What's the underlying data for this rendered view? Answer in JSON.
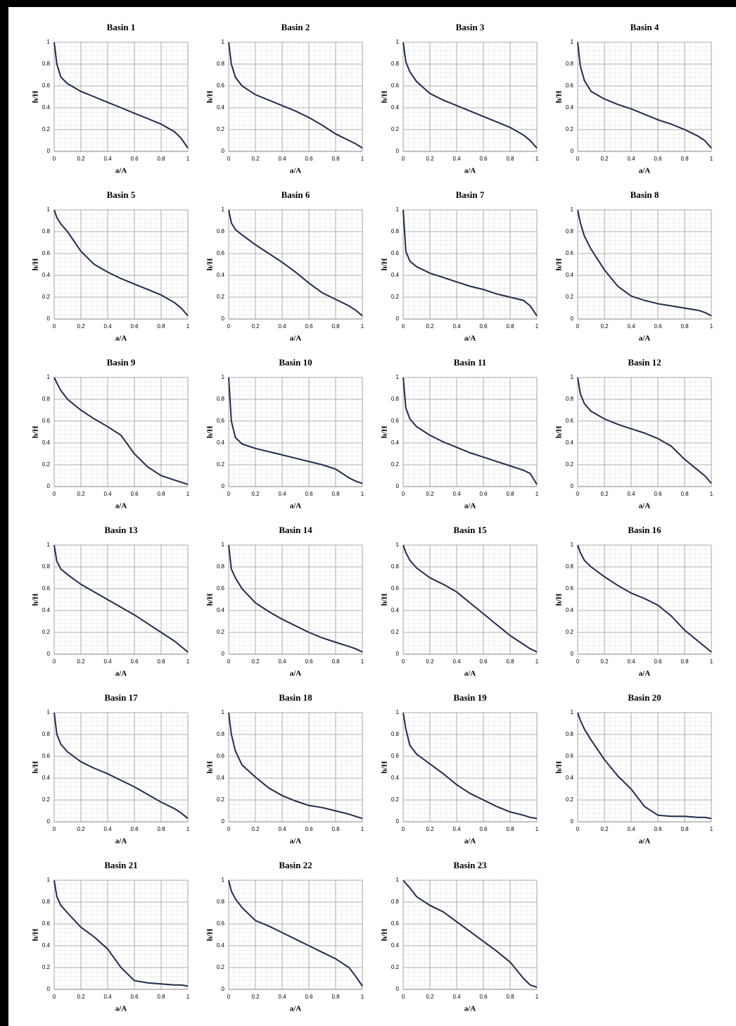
{
  "chart_data": [
    {
      "type": "line",
      "title": "Basin 1",
      "xlabel": "a/A",
      "ylabel": "h/H",
      "x": [
        0,
        0.02,
        0.05,
        0.1,
        0.2,
        0.3,
        0.4,
        0.5,
        0.6,
        0.7,
        0.8,
        0.9,
        0.95,
        1
      ],
      "values": [
        1,
        0.8,
        0.68,
        0.62,
        0.55,
        0.5,
        0.45,
        0.4,
        0.35,
        0.3,
        0.25,
        0.18,
        0.12,
        0.03
      ],
      "color": "#1f2d4d",
      "xlim": [
        0,
        1
      ],
      "ylim": [
        0,
        1
      ],
      "xticks": [
        0,
        0.2,
        0.4,
        0.6,
        0.8,
        1
      ],
      "yticks": [
        0,
        0.2,
        0.4,
        0.6,
        0.8,
        1
      ],
      "grid": true
    },
    {
      "type": "line",
      "title": "Basin 2",
      "xlabel": "a/A",
      "ylabel": "h/H",
      "x": [
        0,
        0.02,
        0.05,
        0.1,
        0.2,
        0.3,
        0.4,
        0.5,
        0.6,
        0.7,
        0.8,
        0.9,
        0.95,
        1
      ],
      "values": [
        1,
        0.8,
        0.68,
        0.6,
        0.52,
        0.47,
        0.42,
        0.37,
        0.31,
        0.24,
        0.16,
        0.1,
        0.07,
        0.03
      ],
      "color": "#1f2d4d",
      "xlim": [
        0,
        1
      ],
      "ylim": [
        0,
        1
      ],
      "xticks": [
        0,
        0.2,
        0.4,
        0.6,
        0.8,
        1
      ],
      "yticks": [
        0,
        0.2,
        0.4,
        0.6,
        0.8,
        1
      ],
      "grid": true
    },
    {
      "type": "line",
      "title": "Basin 3",
      "xlabel": "a/A",
      "ylabel": "h/H",
      "x": [
        0,
        0.02,
        0.05,
        0.1,
        0.2,
        0.3,
        0.4,
        0.5,
        0.6,
        0.7,
        0.8,
        0.9,
        0.95,
        1
      ],
      "values": [
        1,
        0.82,
        0.73,
        0.64,
        0.53,
        0.47,
        0.42,
        0.37,
        0.32,
        0.27,
        0.22,
        0.15,
        0.1,
        0.03
      ],
      "color": "#1f2d4d",
      "xlim": [
        0,
        1
      ],
      "ylim": [
        0,
        1
      ],
      "xticks": [
        0,
        0.2,
        0.4,
        0.6,
        0.8,
        1
      ],
      "yticks": [
        0,
        0.2,
        0.4,
        0.6,
        0.8,
        1
      ],
      "grid": true
    },
    {
      "type": "line",
      "title": "Basin 4",
      "xlabel": "a/A",
      "ylabel": "h/H",
      "x": [
        0,
        0.02,
        0.05,
        0.1,
        0.2,
        0.3,
        0.4,
        0.5,
        0.6,
        0.7,
        0.8,
        0.9,
        0.95,
        1
      ],
      "values": [
        1,
        0.78,
        0.65,
        0.55,
        0.48,
        0.43,
        0.39,
        0.34,
        0.29,
        0.25,
        0.2,
        0.14,
        0.1,
        0.03
      ],
      "color": "#1f2d4d",
      "xlim": [
        0,
        1
      ],
      "ylim": [
        0,
        1
      ],
      "xticks": [
        0,
        0.2,
        0.4,
        0.6,
        0.8,
        1
      ],
      "yticks": [
        0,
        0.2,
        0.4,
        0.6,
        0.8,
        1
      ],
      "grid": true
    },
    {
      "type": "line",
      "title": "Basin 5",
      "xlabel": "a/A",
      "ylabel": "h/H",
      "x": [
        0,
        0.02,
        0.05,
        0.1,
        0.2,
        0.3,
        0.4,
        0.5,
        0.6,
        0.7,
        0.8,
        0.9,
        0.95,
        1
      ],
      "values": [
        1,
        0.93,
        0.87,
        0.8,
        0.62,
        0.5,
        0.43,
        0.37,
        0.32,
        0.27,
        0.22,
        0.15,
        0.1,
        0.03
      ],
      "color": "#1f2d4d",
      "xlim": [
        0,
        1
      ],
      "ylim": [
        0,
        1
      ],
      "xticks": [
        0,
        0.2,
        0.4,
        0.6,
        0.8,
        1
      ],
      "yticks": [
        0,
        0.2,
        0.4,
        0.6,
        0.8,
        1
      ],
      "grid": true
    },
    {
      "type": "line",
      "title": "Basin 6",
      "xlabel": "a/A",
      "ylabel": "h/H",
      "x": [
        0,
        0.02,
        0.05,
        0.1,
        0.2,
        0.3,
        0.4,
        0.5,
        0.6,
        0.7,
        0.8,
        0.9,
        0.95,
        1
      ],
      "values": [
        1,
        0.88,
        0.82,
        0.77,
        0.68,
        0.6,
        0.52,
        0.43,
        0.33,
        0.24,
        0.18,
        0.12,
        0.08,
        0.03
      ],
      "color": "#1f2d4d",
      "xlim": [
        0,
        1
      ],
      "ylim": [
        0,
        1
      ],
      "xticks": [
        0,
        0.2,
        0.4,
        0.6,
        0.8,
        1
      ],
      "yticks": [
        0,
        0.2,
        0.4,
        0.6,
        0.8,
        1
      ],
      "grid": true
    },
    {
      "type": "line",
      "title": "Basin 7",
      "xlabel": "a/A",
      "ylabel": "h/H",
      "x": [
        0,
        0.02,
        0.05,
        0.1,
        0.2,
        0.3,
        0.4,
        0.5,
        0.6,
        0.7,
        0.8,
        0.9,
        0.95,
        1
      ],
      "values": [
        1,
        0.62,
        0.53,
        0.48,
        0.42,
        0.38,
        0.34,
        0.3,
        0.27,
        0.23,
        0.2,
        0.17,
        0.12,
        0.03
      ],
      "color": "#1f2d4d",
      "xlim": [
        0,
        1
      ],
      "ylim": [
        0,
        1
      ],
      "xticks": [
        0,
        0.2,
        0.4,
        0.6,
        0.8,
        1
      ],
      "yticks": [
        0,
        0.2,
        0.4,
        0.6,
        0.8,
        1
      ],
      "grid": true
    },
    {
      "type": "line",
      "title": "Basin 8",
      "xlabel": "a/A",
      "ylabel": "h/H",
      "x": [
        0,
        0.02,
        0.05,
        0.1,
        0.2,
        0.3,
        0.4,
        0.5,
        0.6,
        0.7,
        0.8,
        0.9,
        0.95,
        1
      ],
      "values": [
        1,
        0.88,
        0.76,
        0.64,
        0.45,
        0.3,
        0.21,
        0.17,
        0.14,
        0.12,
        0.1,
        0.08,
        0.06,
        0.03
      ],
      "color": "#1f2d4d",
      "xlim": [
        0,
        1
      ],
      "ylim": [
        0,
        1
      ],
      "xticks": [
        0,
        0.2,
        0.4,
        0.6,
        0.8,
        1
      ],
      "yticks": [
        0,
        0.2,
        0.4,
        0.6,
        0.8,
        1
      ],
      "grid": true
    },
    {
      "type": "line",
      "title": "Basin 9",
      "xlabel": "a/A",
      "ylabel": "h/H",
      "x": [
        0,
        0.02,
        0.05,
        0.1,
        0.2,
        0.3,
        0.4,
        0.5,
        0.6,
        0.7,
        0.8,
        0.9,
        0.95,
        1
      ],
      "values": [
        1,
        0.95,
        0.88,
        0.8,
        0.7,
        0.62,
        0.55,
        0.47,
        0.3,
        0.18,
        0.1,
        0.06,
        0.04,
        0.02
      ],
      "color": "#1f2d4d",
      "xlim": [
        0,
        1
      ],
      "ylim": [
        0,
        1
      ],
      "xticks": [
        0,
        0.2,
        0.4,
        0.6,
        0.8,
        1
      ],
      "yticks": [
        0,
        0.2,
        0.4,
        0.6,
        0.8,
        1
      ],
      "grid": true
    },
    {
      "type": "line",
      "title": "Basin 10",
      "xlabel": "a/A",
      "ylabel": "h/H",
      "x": [
        0,
        0.02,
        0.05,
        0.1,
        0.2,
        0.3,
        0.4,
        0.5,
        0.6,
        0.7,
        0.8,
        0.9,
        0.95,
        1
      ],
      "values": [
        1,
        0.6,
        0.45,
        0.39,
        0.35,
        0.32,
        0.29,
        0.26,
        0.23,
        0.2,
        0.16,
        0.08,
        0.05,
        0.03
      ],
      "color": "#1f2d4d",
      "xlim": [
        0,
        1
      ],
      "ylim": [
        0,
        1
      ],
      "xticks": [
        0,
        0.2,
        0.4,
        0.6,
        0.8,
        1
      ],
      "yticks": [
        0,
        0.2,
        0.4,
        0.6,
        0.8,
        1
      ],
      "grid": true
    },
    {
      "type": "line",
      "title": "Basin 11",
      "xlabel": "a/A",
      "ylabel": "h/H",
      "x": [
        0,
        0.02,
        0.05,
        0.1,
        0.2,
        0.3,
        0.4,
        0.5,
        0.6,
        0.7,
        0.8,
        0.9,
        0.95,
        1
      ],
      "values": [
        1,
        0.72,
        0.62,
        0.55,
        0.47,
        0.41,
        0.36,
        0.31,
        0.27,
        0.23,
        0.19,
        0.15,
        0.12,
        0.02
      ],
      "color": "#1f2d4d",
      "xlim": [
        0,
        1
      ],
      "ylim": [
        0,
        1
      ],
      "xticks": [
        0,
        0.2,
        0.4,
        0.6,
        0.8,
        1
      ],
      "yticks": [
        0,
        0.2,
        0.4,
        0.6,
        0.8,
        1
      ],
      "grid": true
    },
    {
      "type": "line",
      "title": "Basin 12",
      "xlabel": "a/A",
      "ylabel": "h/H",
      "x": [
        0,
        0.02,
        0.05,
        0.1,
        0.2,
        0.3,
        0.4,
        0.5,
        0.6,
        0.7,
        0.8,
        0.9,
        0.95,
        1
      ],
      "values": [
        1,
        0.85,
        0.76,
        0.69,
        0.62,
        0.57,
        0.53,
        0.49,
        0.44,
        0.37,
        0.25,
        0.15,
        0.1,
        0.03
      ],
      "color": "#1f2d4d",
      "xlim": [
        0,
        1
      ],
      "ylim": [
        0,
        1
      ],
      "xticks": [
        0,
        0.2,
        0.4,
        0.6,
        0.8,
        1
      ],
      "yticks": [
        0,
        0.2,
        0.4,
        0.6,
        0.8,
        1
      ],
      "grid": true
    },
    {
      "type": "line",
      "title": "Basin 13",
      "xlabel": "a/A",
      "ylabel": "h/H",
      "x": [
        0,
        0.02,
        0.05,
        0.1,
        0.2,
        0.3,
        0.4,
        0.5,
        0.6,
        0.7,
        0.8,
        0.9,
        0.95,
        1
      ],
      "values": [
        1,
        0.85,
        0.78,
        0.73,
        0.64,
        0.57,
        0.5,
        0.43,
        0.36,
        0.28,
        0.2,
        0.12,
        0.07,
        0.02
      ],
      "color": "#1f2d4d",
      "xlim": [
        0,
        1
      ],
      "ylim": [
        0,
        1
      ],
      "xticks": [
        0,
        0.2,
        0.4,
        0.6,
        0.8,
        1
      ],
      "yticks": [
        0,
        0.2,
        0.4,
        0.6,
        0.8,
        1
      ],
      "grid": true
    },
    {
      "type": "line",
      "title": "Basin 14",
      "xlabel": "a/A",
      "ylabel": "h/H",
      "x": [
        0,
        0.02,
        0.05,
        0.1,
        0.2,
        0.3,
        0.4,
        0.5,
        0.6,
        0.7,
        0.8,
        0.9,
        0.95,
        1
      ],
      "values": [
        1,
        0.78,
        0.7,
        0.6,
        0.47,
        0.39,
        0.32,
        0.26,
        0.2,
        0.15,
        0.11,
        0.07,
        0.05,
        0.02
      ],
      "color": "#1f2d4d",
      "xlim": [
        0,
        1
      ],
      "ylim": [
        0,
        1
      ],
      "xticks": [
        0,
        0.2,
        0.4,
        0.6,
        0.8,
        1
      ],
      "yticks": [
        0,
        0.2,
        0.4,
        0.6,
        0.8,
        1
      ],
      "grid": true
    },
    {
      "type": "line",
      "title": "Basin 15",
      "xlabel": "a/A",
      "ylabel": "h/H",
      "x": [
        0,
        0.02,
        0.05,
        0.1,
        0.2,
        0.3,
        0.4,
        0.5,
        0.6,
        0.7,
        0.8,
        0.9,
        0.95,
        1
      ],
      "values": [
        1,
        0.93,
        0.86,
        0.79,
        0.7,
        0.64,
        0.57,
        0.47,
        0.37,
        0.27,
        0.17,
        0.09,
        0.05,
        0.02
      ],
      "color": "#1f2d4d",
      "xlim": [
        0,
        1
      ],
      "ylim": [
        0,
        1
      ],
      "xticks": [
        0,
        0.2,
        0.4,
        0.6,
        0.8,
        1
      ],
      "yticks": [
        0,
        0.2,
        0.4,
        0.6,
        0.8,
        1
      ],
      "grid": true
    },
    {
      "type": "line",
      "title": "Basin 16",
      "xlabel": "a/A",
      "ylabel": "h/H",
      "x": [
        0,
        0.02,
        0.05,
        0.1,
        0.2,
        0.3,
        0.4,
        0.5,
        0.6,
        0.7,
        0.8,
        0.9,
        0.95,
        1
      ],
      "values": [
        1,
        0.93,
        0.86,
        0.8,
        0.71,
        0.63,
        0.56,
        0.51,
        0.45,
        0.35,
        0.22,
        0.12,
        0.07,
        0.02
      ],
      "color": "#1f2d4d",
      "xlim": [
        0,
        1
      ],
      "ylim": [
        0,
        1
      ],
      "xticks": [
        0,
        0.2,
        0.4,
        0.6,
        0.8,
        1
      ],
      "yticks": [
        0,
        0.2,
        0.4,
        0.6,
        0.8,
        1
      ],
      "grid": true
    },
    {
      "type": "line",
      "title": "Basin 17",
      "xlabel": "a/A",
      "ylabel": "h/H",
      "x": [
        0,
        0.02,
        0.05,
        0.1,
        0.2,
        0.3,
        0.4,
        0.5,
        0.6,
        0.7,
        0.8,
        0.9,
        0.95,
        1
      ],
      "values": [
        1,
        0.8,
        0.71,
        0.64,
        0.55,
        0.49,
        0.44,
        0.38,
        0.32,
        0.25,
        0.18,
        0.12,
        0.08,
        0.03
      ],
      "color": "#1f2d4d",
      "xlim": [
        0,
        1
      ],
      "ylim": [
        0,
        1
      ],
      "xticks": [
        0,
        0.2,
        0.4,
        0.6,
        0.8,
        1
      ],
      "yticks": [
        0,
        0.2,
        0.4,
        0.6,
        0.8,
        1
      ],
      "grid": true
    },
    {
      "type": "line",
      "title": "Basin 18",
      "xlabel": "a/A",
      "ylabel": "h/H",
      "x": [
        0,
        0.02,
        0.05,
        0.1,
        0.2,
        0.3,
        0.4,
        0.5,
        0.6,
        0.7,
        0.8,
        0.9,
        0.95,
        1
      ],
      "values": [
        1,
        0.8,
        0.65,
        0.52,
        0.41,
        0.31,
        0.24,
        0.19,
        0.15,
        0.13,
        0.1,
        0.07,
        0.05,
        0.03
      ],
      "color": "#1f2d4d",
      "xlim": [
        0,
        1
      ],
      "ylim": [
        0,
        1
      ],
      "xticks": [
        0,
        0.2,
        0.4,
        0.6,
        0.8,
        1
      ],
      "yticks": [
        0,
        0.2,
        0.4,
        0.6,
        0.8,
        1
      ],
      "grid": true
    },
    {
      "type": "line",
      "title": "Basin 19",
      "xlabel": "a/A",
      "ylabel": "h/H",
      "x": [
        0,
        0.02,
        0.05,
        0.1,
        0.2,
        0.3,
        0.4,
        0.5,
        0.6,
        0.7,
        0.8,
        0.9,
        0.95,
        1
      ],
      "values": [
        1,
        0.85,
        0.7,
        0.62,
        0.53,
        0.44,
        0.34,
        0.26,
        0.2,
        0.14,
        0.09,
        0.06,
        0.04,
        0.03
      ],
      "color": "#1f2d4d",
      "xlim": [
        0,
        1
      ],
      "ylim": [
        0,
        1
      ],
      "xticks": [
        0,
        0.2,
        0.4,
        0.6,
        0.8,
        1
      ],
      "yticks": [
        0,
        0.2,
        0.4,
        0.6,
        0.8,
        1
      ],
      "grid": true
    },
    {
      "type": "line",
      "title": "Basin 20",
      "xlabel": "a/A",
      "ylabel": "h/H",
      "x": [
        0,
        0.02,
        0.05,
        0.1,
        0.2,
        0.3,
        0.4,
        0.5,
        0.6,
        0.7,
        0.8,
        0.9,
        0.95,
        1
      ],
      "values": [
        1,
        0.93,
        0.85,
        0.75,
        0.57,
        0.42,
        0.3,
        0.14,
        0.06,
        0.05,
        0.05,
        0.04,
        0.04,
        0.03
      ],
      "color": "#1f2d4d",
      "xlim": [
        0,
        1
      ],
      "ylim": [
        0,
        1
      ],
      "xticks": [
        0,
        0.2,
        0.4,
        0.6,
        0.8,
        1
      ],
      "yticks": [
        0,
        0.2,
        0.4,
        0.6,
        0.8,
        1
      ],
      "grid": true
    },
    {
      "type": "line",
      "title": "Basin 21",
      "xlabel": "a/A",
      "ylabel": "h/H",
      "x": [
        0,
        0.02,
        0.05,
        0.1,
        0.2,
        0.3,
        0.4,
        0.5,
        0.6,
        0.7,
        0.8,
        0.9,
        0.95,
        1
      ],
      "values": [
        1,
        0.85,
        0.77,
        0.7,
        0.57,
        0.48,
        0.37,
        0.2,
        0.08,
        0.06,
        0.05,
        0.04,
        0.04,
        0.03
      ],
      "color": "#1f2d4d",
      "xlim": [
        0,
        1
      ],
      "ylim": [
        0,
        1
      ],
      "xticks": [
        0,
        0.2,
        0.4,
        0.6,
        0.8,
        1
      ],
      "yticks": [
        0,
        0.2,
        0.4,
        0.6,
        0.8,
        1
      ],
      "grid": true
    },
    {
      "type": "line",
      "title": "Basin 22",
      "xlabel": "a/A",
      "ylabel": "h/H",
      "x": [
        0,
        0.02,
        0.05,
        0.1,
        0.2,
        0.3,
        0.4,
        0.5,
        0.6,
        0.7,
        0.8,
        0.9,
        0.95,
        1
      ],
      "values": [
        1,
        0.9,
        0.83,
        0.75,
        0.63,
        0.58,
        0.52,
        0.46,
        0.4,
        0.34,
        0.28,
        0.2,
        0.12,
        0.03
      ],
      "color": "#1f2d4d",
      "xlim": [
        0,
        1
      ],
      "ylim": [
        0,
        1
      ],
      "xticks": [
        0,
        0.2,
        0.4,
        0.6,
        0.8,
        1
      ],
      "yticks": [
        0,
        0.2,
        0.4,
        0.6,
        0.8,
        1
      ],
      "grid": true
    },
    {
      "type": "line",
      "title": "Basin 23",
      "xlabel": "a/A",
      "ylabel": "h/H",
      "x": [
        0,
        0.02,
        0.05,
        0.1,
        0.2,
        0.3,
        0.4,
        0.5,
        0.6,
        0.7,
        0.8,
        0.9,
        0.95,
        1
      ],
      "values": [
        1,
        0.97,
        0.93,
        0.85,
        0.77,
        0.71,
        0.62,
        0.53,
        0.44,
        0.35,
        0.25,
        0.1,
        0.04,
        0.02
      ],
      "color": "#1f2d4d",
      "xlim": [
        0,
        1
      ],
      "ylim": [
        0,
        1
      ],
      "xticks": [
        0,
        0.2,
        0.4,
        0.6,
        0.8,
        1
      ],
      "yticks": [
        0,
        0.2,
        0.4,
        0.6,
        0.8,
        1
      ],
      "grid": true
    }
  ]
}
